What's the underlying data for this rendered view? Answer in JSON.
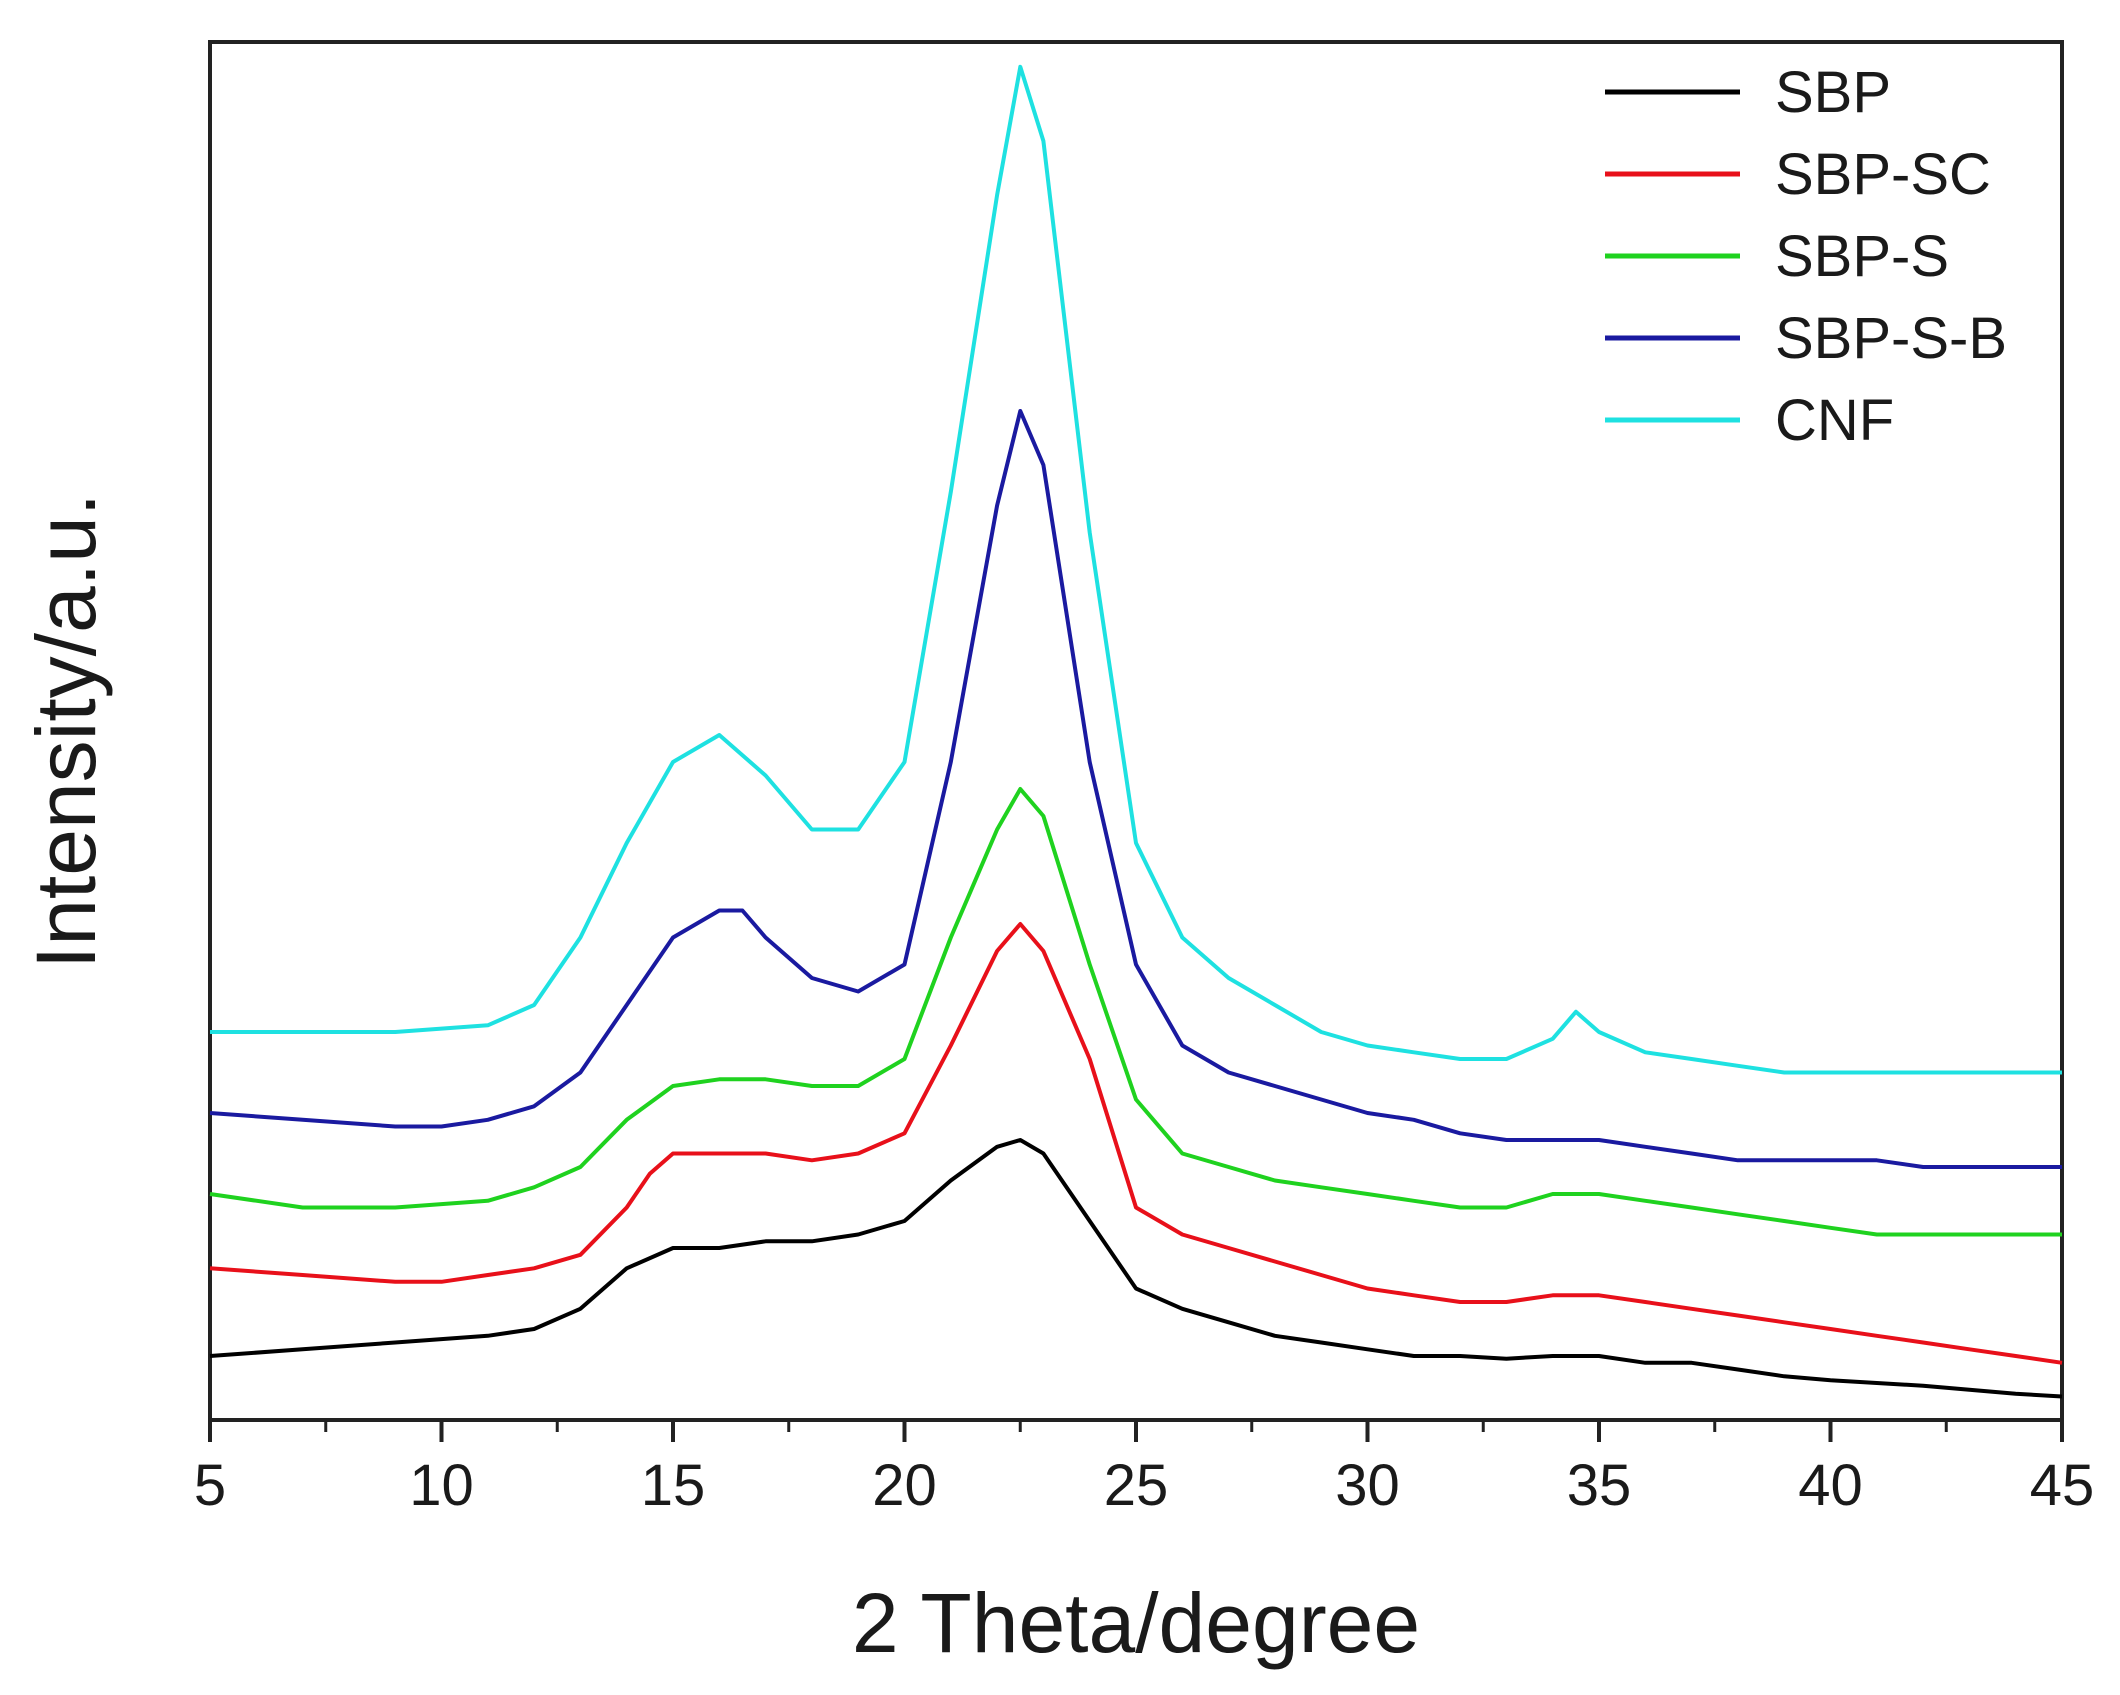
{
  "chart_data": {
    "type": "line",
    "title": "",
    "xlabel": "2 Theta/degree",
    "ylabel": "Intensity/a.u.",
    "xlim": [
      5,
      45
    ],
    "ylim": [
      0,
      100
    ],
    "y_ticks_labeled": false,
    "x_ticks": [
      5,
      10,
      15,
      20,
      25,
      30,
      35,
      40,
      45
    ],
    "x_tick_labels": [
      "5",
      "10",
      "15",
      "20",
      "25",
      "30",
      "35",
      "40",
      "45"
    ],
    "grid": false,
    "legend_position": "top-right",
    "series": [
      {
        "name": "SBP",
        "color": "#000000",
        "points": [
          [
            5,
            4.0
          ],
          [
            7,
            4.5
          ],
          [
            9,
            5.0
          ],
          [
            11,
            5.5
          ],
          [
            12,
            6.0
          ],
          [
            13,
            7.5
          ],
          [
            14,
            10.5
          ],
          [
            15,
            12.0
          ],
          [
            16,
            12.0
          ],
          [
            17,
            12.5
          ],
          [
            18,
            12.5
          ],
          [
            19,
            13.0
          ],
          [
            20,
            14.0
          ],
          [
            21,
            17.0
          ],
          [
            22,
            19.5
          ],
          [
            22.5,
            20.0
          ],
          [
            23,
            19.0
          ],
          [
            24,
            14.0
          ],
          [
            25,
            9.0
          ],
          [
            26,
            7.5
          ],
          [
            27,
            6.5
          ],
          [
            28,
            5.5
          ],
          [
            29,
            5.0
          ],
          [
            30,
            4.5
          ],
          [
            31,
            4.0
          ],
          [
            32,
            4.0
          ],
          [
            33,
            3.8
          ],
          [
            34,
            4.0
          ],
          [
            35,
            4.0
          ],
          [
            36,
            3.5
          ],
          [
            37,
            3.5
          ],
          [
            38,
            3.0
          ],
          [
            39,
            2.5
          ],
          [
            40,
            2.2
          ],
          [
            41,
            2.0
          ],
          [
            42,
            1.8
          ],
          [
            43,
            1.5
          ],
          [
            44,
            1.2
          ],
          [
            45,
            1.0
          ]
        ]
      },
      {
        "name": "SBP-SC",
        "color": "#e8101a",
        "points": [
          [
            5,
            10.5
          ],
          [
            7,
            10.0
          ],
          [
            9,
            9.5
          ],
          [
            10,
            9.5
          ],
          [
            11,
            10.0
          ],
          [
            12,
            10.5
          ],
          [
            13,
            11.5
          ],
          [
            14,
            15.0
          ],
          [
            14.5,
            17.5
          ],
          [
            15,
            19.0
          ],
          [
            16,
            19.0
          ],
          [
            17,
            19.0
          ],
          [
            18,
            18.5
          ],
          [
            19,
            19.0
          ],
          [
            20,
            20.5
          ],
          [
            21,
            27.0
          ],
          [
            22,
            34.0
          ],
          [
            22.5,
            36.0
          ],
          [
            23,
            34.0
          ],
          [
            24,
            26.0
          ],
          [
            25,
            15.0
          ],
          [
            26,
            13.0
          ],
          [
            27,
            12.0
          ],
          [
            28,
            11.0
          ],
          [
            29,
            10.0
          ],
          [
            30,
            9.0
          ],
          [
            31,
            8.5
          ],
          [
            32,
            8.0
          ],
          [
            33,
            8.0
          ],
          [
            34,
            8.5
          ],
          [
            35,
            8.5
          ],
          [
            36,
            8.0
          ],
          [
            37,
            7.5
          ],
          [
            38,
            7.0
          ],
          [
            39,
            6.5
          ],
          [
            40,
            6.0
          ],
          [
            41,
            5.5
          ],
          [
            42,
            5.0
          ],
          [
            43,
            4.5
          ],
          [
            44,
            4.0
          ],
          [
            45,
            3.5
          ]
        ]
      },
      {
        "name": "SBP-S",
        "color": "#1fd21f",
        "points": [
          [
            5,
            16.0
          ],
          [
            7,
            15.0
          ],
          [
            9,
            15.0
          ],
          [
            11,
            15.5
          ],
          [
            12,
            16.5
          ],
          [
            13,
            18.0
          ],
          [
            14,
            21.5
          ],
          [
            15,
            24.0
          ],
          [
            16,
            24.5
          ],
          [
            17,
            24.5
          ],
          [
            18,
            24.0
          ],
          [
            19,
            24.0
          ],
          [
            20,
            26.0
          ],
          [
            21,
            35.0
          ],
          [
            22,
            43.0
          ],
          [
            22.5,
            46.0
          ],
          [
            23,
            44.0
          ],
          [
            24,
            33.0
          ],
          [
            25,
            23.0
          ],
          [
            26,
            19.0
          ],
          [
            27,
            18.0
          ],
          [
            28,
            17.0
          ],
          [
            29,
            16.5
          ],
          [
            30,
            16.0
          ],
          [
            31,
            15.5
          ],
          [
            32,
            15.0
          ],
          [
            33,
            15.0
          ],
          [
            34,
            16.0
          ],
          [
            35,
            16.0
          ],
          [
            36,
            15.5
          ],
          [
            37,
            15.0
          ],
          [
            38,
            14.5
          ],
          [
            39,
            14.0
          ],
          [
            40,
            13.5
          ],
          [
            41,
            13.0
          ],
          [
            42,
            13.0
          ],
          [
            43,
            13.0
          ],
          [
            44,
            13.0
          ],
          [
            45,
            13.0
          ]
        ]
      },
      {
        "name": "SBP-S-B",
        "color": "#1a1aa0",
        "points": [
          [
            5,
            22.0
          ],
          [
            7,
            21.5
          ],
          [
            9,
            21.0
          ],
          [
            10,
            21.0
          ],
          [
            11,
            21.5
          ],
          [
            12,
            22.5
          ],
          [
            13,
            25.0
          ],
          [
            14,
            30.0
          ],
          [
            15,
            35.0
          ],
          [
            16,
            37.0
          ],
          [
            16.5,
            37.0
          ],
          [
            17,
            35.0
          ],
          [
            18,
            32.0
          ],
          [
            19,
            31.0
          ],
          [
            20,
            33.0
          ],
          [
            21,
            48.0
          ],
          [
            22,
            67.0
          ],
          [
            22.5,
            74.0
          ],
          [
            23,
            70.0
          ],
          [
            24,
            48.0
          ],
          [
            25,
            33.0
          ],
          [
            26,
            27.0
          ],
          [
            27,
            25.0
          ],
          [
            28,
            24.0
          ],
          [
            29,
            23.0
          ],
          [
            30,
            22.0
          ],
          [
            31,
            21.5
          ],
          [
            32,
            20.5
          ],
          [
            33,
            20.0
          ],
          [
            34,
            20.0
          ],
          [
            35,
            20.0
          ],
          [
            36,
            19.5
          ],
          [
            37,
            19.0
          ],
          [
            38,
            18.5
          ],
          [
            39,
            18.5
          ],
          [
            40,
            18.5
          ],
          [
            41,
            18.5
          ],
          [
            42,
            18.0
          ],
          [
            43,
            18.0
          ],
          [
            44,
            18.0
          ],
          [
            45,
            18.0
          ]
        ]
      },
      {
        "name": "CNF",
        "color": "#1ee1e1",
        "points": [
          [
            5,
            28.0
          ],
          [
            7,
            28.0
          ],
          [
            9,
            28.0
          ],
          [
            11,
            28.5
          ],
          [
            12,
            30.0
          ],
          [
            13,
            35.0
          ],
          [
            14,
            42.0
          ],
          [
            15,
            48.0
          ],
          [
            16,
            50.0
          ],
          [
            17,
            47.0
          ],
          [
            18,
            43.0
          ],
          [
            19,
            43.0
          ],
          [
            20,
            48.0
          ],
          [
            21,
            68.0
          ],
          [
            22,
            90.0
          ],
          [
            22.5,
            99.5
          ],
          [
            23,
            94.0
          ],
          [
            24,
            65.0
          ],
          [
            25,
            42.0
          ],
          [
            26,
            35.0
          ],
          [
            27,
            32.0
          ],
          [
            28,
            30.0
          ],
          [
            29,
            28.0
          ],
          [
            30,
            27.0
          ],
          [
            31,
            26.5
          ],
          [
            32,
            26.0
          ],
          [
            33,
            26.0
          ],
          [
            34,
            27.5
          ],
          [
            34.5,
            29.5
          ],
          [
            35,
            28.0
          ],
          [
            36,
            26.5
          ],
          [
            37,
            26.0
          ],
          [
            38,
            25.5
          ],
          [
            39,
            25.0
          ],
          [
            40,
            25.0
          ],
          [
            41,
            25.0
          ],
          [
            42,
            25.0
          ],
          [
            43,
            25.0
          ],
          [
            44,
            25.0
          ],
          [
            45,
            25.0
          ]
        ]
      }
    ]
  }
}
